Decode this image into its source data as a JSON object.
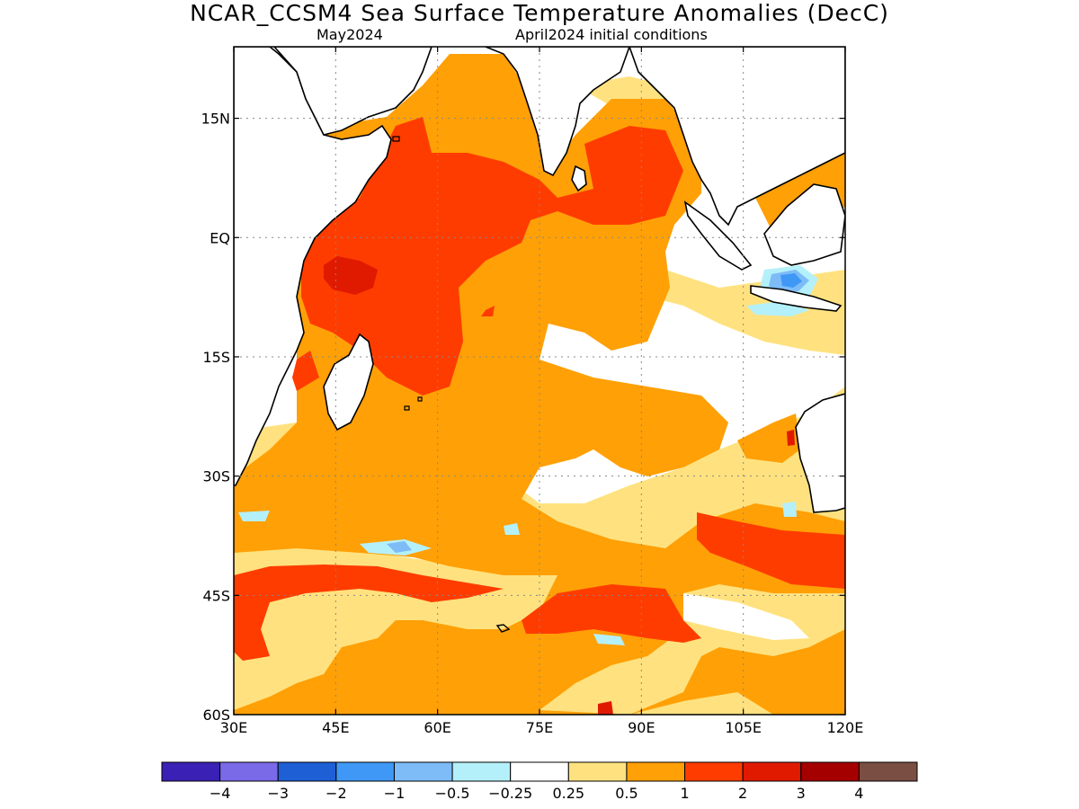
{
  "title": "NCAR_CCSM4 Sea Surface Temperature Anomalies (DecC)",
  "subtitle_left": "May2024",
  "subtitle_right": "April2024 initial conditions",
  "map": {
    "lon_range": [
      30,
      120
    ],
    "lat_range": [
      -60,
      24
    ],
    "lon_ticks": [
      "30E",
      "45E",
      "60E",
      "75E",
      "90E",
      "105E",
      "120E"
    ],
    "lat_ticks": [
      "15N",
      "EQ",
      "15S",
      "30S",
      "45S",
      "60S"
    ],
    "gridlines": "dotted"
  },
  "colorbar": {
    "colors": [
      "#3a20b4",
      "#7a6ae8",
      "#1e5fd6",
      "#3f98f5",
      "#7dbcf7",
      "#b4f0fa",
      "#ffffff",
      "#ffe27f",
      "#ffa006",
      "#ff3c00",
      "#e01a00",
      "#a50000",
      "#7a4e42"
    ],
    "labels": [
      "−4",
      "−3",
      "−2",
      "−1",
      "−0.5",
      "−0.25",
      "0.25",
      "0.5",
      "1",
      "2",
      "3",
      "4"
    ]
  }
}
